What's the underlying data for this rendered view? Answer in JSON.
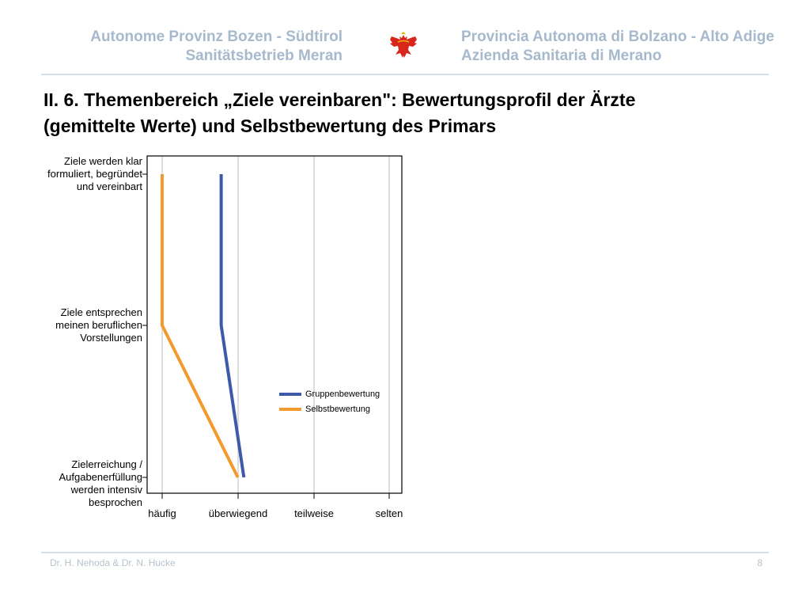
{
  "header": {
    "left_line1": "Autonome Provinz Bozen -  Südtirol",
    "left_line2": "Sanitätsbetrieb Meran",
    "right_line1": "Provincia Autonoma di Bolzano - Alto Adige",
    "right_line2": "Azienda Sanitaria di Merano"
  },
  "title": {
    "line1": "II. 6. Themenbereich „Ziele vereinbaren\": Bewertungsprofil der Ärzte",
    "line2": "(gemittelte Werte) und Selbstbewertung des Primars"
  },
  "chart_data": {
    "type": "line",
    "orientation": "profile",
    "value_axis_range": [
      1,
      4
    ],
    "value_labels": [
      "häufig",
      "überwiegend",
      "teilweise",
      "selten"
    ],
    "items": [
      {
        "label_lines": [
          "Ziele werden klar",
          "formuliert, begründet",
          "und vereinbart"
        ]
      },
      {
        "label_lines": [
          "Ziele entsprechen",
          "meinen beruflichen",
          "Vorstellungen"
        ]
      },
      {
        "label_lines": [
          "Zielerreichung /",
          "Aufgabenerfüllung",
          "werden intensiv",
          "besprochen"
        ]
      }
    ],
    "series": [
      {
        "name": "Gruppenbewertung",
        "color": "#3d5aa8",
        "values": [
          1.78,
          1.78,
          2.08
        ]
      },
      {
        "name": "Selbstbewertung",
        "color": "#f29a2e",
        "values": [
          1.0,
          1.0,
          2.0
        ]
      }
    ],
    "legend_position": "inside-right",
    "grid": true
  },
  "footer": {
    "authors": "Dr. H. Nehoda & Dr. N. Hucke",
    "page_number": "8"
  },
  "colors": {
    "header_text": "#a7b9cc",
    "rule": "#d6e0ea",
    "footer_text": "#b8c2cc"
  },
  "logo_icon": "tyrolean-eagle-icon"
}
